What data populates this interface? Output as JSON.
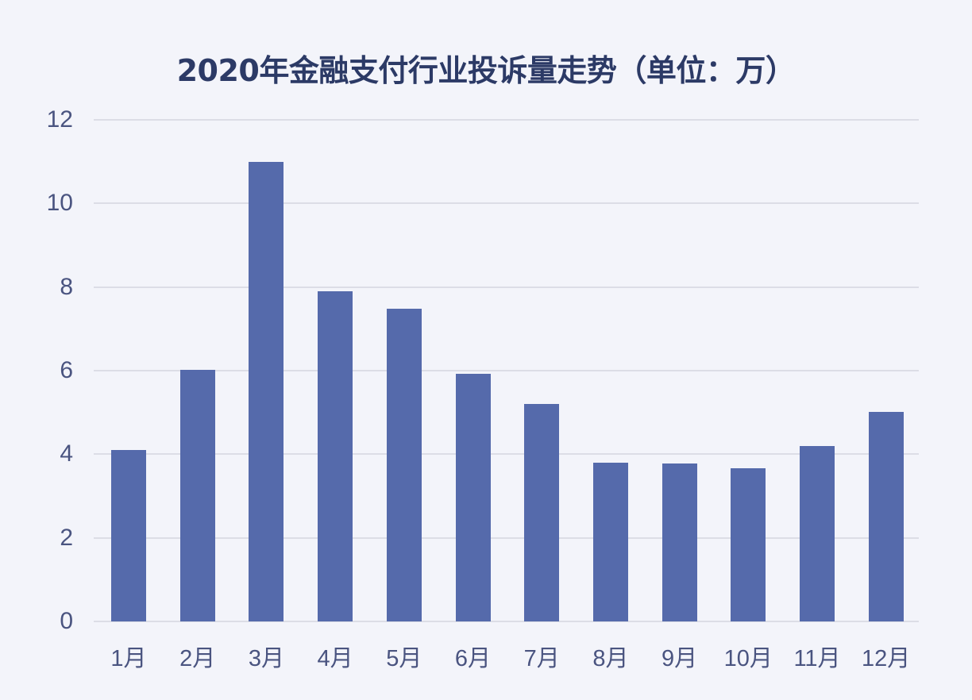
{
  "chart_data": {
    "type": "bar",
    "title": "2020年金融支付行业投诉量走势（单位：万）",
    "xlabel": "",
    "ylabel": "",
    "unit": "万",
    "categories": [
      "1月",
      "2月",
      "3月",
      "4月",
      "5月",
      "6月",
      "7月",
      "8月",
      "9月",
      "10月",
      "11月",
      "12月"
    ],
    "values": [
      4.1,
      6.02,
      11.0,
      7.9,
      7.48,
      5.92,
      5.2,
      3.8,
      3.77,
      3.67,
      4.2,
      5.02
    ],
    "ylim": [
      0,
      12
    ],
    "yticks": [
      "0",
      "2",
      "4",
      "6",
      "8",
      "10",
      "12"
    ],
    "grid": true,
    "legend": null,
    "bar_color": "#556aab"
  },
  "colors": {
    "background": "#f3f4fa",
    "title": "#2c3a66",
    "axis_text": "#4a5480",
    "gridline": "#dcdde6",
    "bar": "#556aab"
  }
}
